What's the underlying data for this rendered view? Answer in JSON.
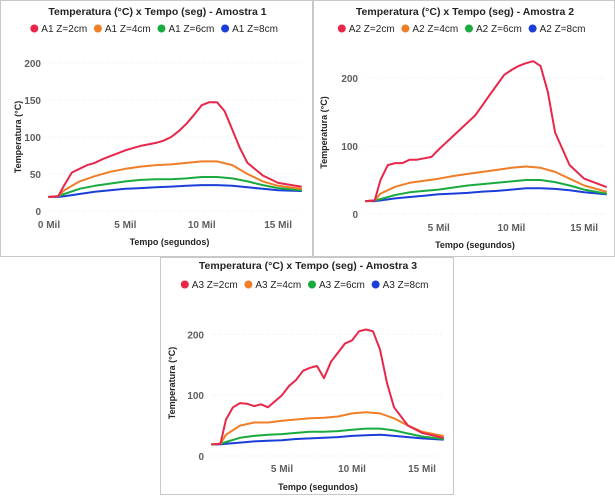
{
  "chart_data": [
    {
      "type": "line",
      "title": "Temperatura (°C) x Tempo (seg) - Amostra 1",
      "xlabel": "Tempo (segundos)",
      "ylabel": "Temperatura (°C)",
      "xlim": [
        0,
        16500
      ],
      "ylim": [
        0,
        200
      ],
      "x_ticks": [
        {
          "v": 0,
          "label": "0 Mil"
        },
        {
          "v": 5000,
          "label": "5 Mil"
        },
        {
          "v": 10000,
          "label": "10 Mil"
        },
        {
          "v": 15000,
          "label": "15 Mil"
        }
      ],
      "y_ticks": [
        {
          "v": 0,
          "label": "0"
        },
        {
          "v": 50,
          "label": "50"
        },
        {
          "v": 100,
          "label": "100"
        },
        {
          "v": 150,
          "label": "150"
        },
        {
          "v": 200,
          "label": "200"
        }
      ],
      "grid": true,
      "legend": "top",
      "series": [
        {
          "name": "A1 Z=2cm",
          "color": "#e8264a",
          "x": [
            0,
            600,
            1000,
            1500,
            2000,
            2500,
            3000,
            3500,
            4000,
            4500,
            5000,
            5500,
            6000,
            6500,
            7000,
            7500,
            8000,
            8500,
            9000,
            9500,
            10000,
            10500,
            11000,
            11500,
            12000,
            12500,
            13000,
            14000,
            15000,
            16500
          ],
          "y": [
            19,
            20,
            35,
            52,
            57,
            62,
            65,
            70,
            74,
            78,
            82,
            85,
            88,
            90,
            92,
            95,
            100,
            108,
            118,
            130,
            143,
            147,
            147,
            135,
            110,
            85,
            65,
            48,
            38,
            33
          ]
        },
        {
          "name": "A1 Z=4cm",
          "color": "#f07e28",
          "x": [
            0,
            600,
            1000,
            2000,
            3000,
            4000,
            5000,
            6000,
            7000,
            8000,
            9000,
            10000,
            11000,
            12000,
            13000,
            14000,
            15000,
            16500
          ],
          "y": [
            19,
            20,
            28,
            40,
            47,
            53,
            57,
            60,
            62,
            63,
            65,
            67,
            67,
            62,
            50,
            40,
            34,
            30
          ]
        },
        {
          "name": "A1 Z=6cm",
          "color": "#1aab40",
          "x": [
            0,
            600,
            1000,
            2000,
            3000,
            4000,
            5000,
            6000,
            7000,
            8000,
            9000,
            10000,
            11000,
            12000,
            13000,
            14000,
            15000,
            16500
          ],
          "y": [
            19,
            20,
            23,
            30,
            34,
            37,
            40,
            42,
            43,
            43,
            44,
            46,
            46,
            44,
            40,
            35,
            31,
            28
          ]
        },
        {
          "name": "A1 Z=8cm",
          "color": "#1b3ed8",
          "x": [
            0,
            600,
            1000,
            2000,
            3000,
            4000,
            5000,
            6000,
            7000,
            8000,
            9000,
            10000,
            11000,
            12000,
            13000,
            14000,
            15000,
            16500
          ],
          "y": [
            19,
            19,
            20,
            23,
            26,
            28,
            30,
            31,
            32,
            33,
            34,
            35,
            35,
            34,
            32,
            30,
            28,
            27
          ]
        }
      ]
    },
    {
      "type": "line",
      "title": "Temperatura (°C) x Tempo (seg) - Amostra 2",
      "xlabel": "Tempo (segundos)",
      "ylabel": "Temperatura (°C)",
      "xlim": [
        0,
        16500
      ],
      "ylim": [
        0,
        240
      ],
      "x_ticks": [
        {
          "v": 5000,
          "label": "5 Mil"
        },
        {
          "v": 10000,
          "label": "10 Mil"
        },
        {
          "v": 15000,
          "label": "15 Mil"
        }
      ],
      "y_ticks": [
        {
          "v": 0,
          "label": "0"
        },
        {
          "v": 100,
          "label": "100"
        },
        {
          "v": 200,
          "label": "200"
        }
      ],
      "grid": true,
      "legend": "top",
      "series": [
        {
          "name": "A2 Z=2cm",
          "color": "#e8264a",
          "x": [
            0,
            600,
            1000,
            1500,
            2000,
            2500,
            3000,
            3500,
            4000,
            4500,
            5000,
            5500,
            6000,
            6500,
            7000,
            7500,
            8000,
            8500,
            9000,
            9500,
            10000,
            10500,
            11000,
            11500,
            12000,
            12500,
            13000,
            14000,
            15000,
            16500
          ],
          "y": [
            19,
            20,
            50,
            72,
            75,
            75,
            80,
            80,
            82,
            84,
            95,
            105,
            115,
            125,
            135,
            145,
            160,
            175,
            190,
            205,
            212,
            218,
            222,
            225,
            218,
            180,
            120,
            72,
            52,
            40
          ]
        },
        {
          "name": "A2 Z=4cm",
          "color": "#f07e28",
          "x": [
            0,
            600,
            1000,
            2000,
            3000,
            4000,
            5000,
            6000,
            7000,
            8000,
            9000,
            10000,
            11000,
            12000,
            13000,
            14000,
            15000,
            16500
          ],
          "y": [
            19,
            20,
            30,
            40,
            46,
            49,
            52,
            56,
            59,
            62,
            65,
            68,
            70,
            68,
            62,
            52,
            42,
            33
          ]
        },
        {
          "name": "A2 Z=6cm",
          "color": "#1aab40",
          "x": [
            0,
            600,
            1000,
            2000,
            3000,
            4000,
            5000,
            6000,
            7000,
            8000,
            9000,
            10000,
            11000,
            12000,
            13000,
            14000,
            15000,
            16500
          ],
          "y": [
            19,
            20,
            22,
            28,
            32,
            34,
            36,
            39,
            42,
            44,
            46,
            48,
            50,
            50,
            47,
            42,
            36,
            30
          ]
        },
        {
          "name": "A2 Z=8cm",
          "color": "#1b3ed8",
          "x": [
            0,
            600,
            1000,
            2000,
            3000,
            4000,
            5000,
            6000,
            7000,
            8000,
            9000,
            10000,
            11000,
            12000,
            13000,
            14000,
            15000,
            16500
          ],
          "y": [
            19,
            19,
            20,
            23,
            25,
            27,
            29,
            30,
            31,
            33,
            34,
            36,
            38,
            38,
            37,
            35,
            32,
            29
          ]
        }
      ]
    },
    {
      "type": "line",
      "title": "Temperatura (°C) x Tempo (seg) - Amostra 3",
      "xlabel": "Tempo (segundos)",
      "ylabel": "Temperatura (°C)",
      "xlim": [
        0,
        16500
      ],
      "ylim": [
        0,
        240
      ],
      "x_ticks": [
        {
          "v": 5000,
          "label": "5 Mil"
        },
        {
          "v": 10000,
          "label": "10 Mil"
        },
        {
          "v": 15000,
          "label": "15 Mil"
        }
      ],
      "y_ticks": [
        {
          "v": 0,
          "label": "0"
        },
        {
          "v": 100,
          "label": "100"
        },
        {
          "v": 200,
          "label": "200"
        }
      ],
      "grid": true,
      "legend": "top",
      "series": [
        {
          "name": "A3 Z=2cm",
          "color": "#e8264a",
          "x": [
            0,
            600,
            1000,
            1500,
            2000,
            2500,
            3000,
            3500,
            4000,
            4500,
            5000,
            5500,
            6000,
            6500,
            7000,
            7500,
            8000,
            8500,
            9000,
            9500,
            10000,
            10500,
            11000,
            11500,
            12000,
            12500,
            13000,
            14000,
            15000,
            16500
          ],
          "y": [
            19,
            20,
            60,
            80,
            87,
            86,
            82,
            85,
            80,
            90,
            100,
            115,
            125,
            140,
            145,
            148,
            128,
            155,
            170,
            185,
            190,
            205,
            208,
            205,
            175,
            120,
            80,
            50,
            38,
            30
          ]
        },
        {
          "name": "A3 Z=4cm",
          "color": "#f07e28",
          "x": [
            0,
            600,
            1000,
            2000,
            3000,
            4000,
            5000,
            6000,
            7000,
            8000,
            9000,
            10000,
            11000,
            12000,
            13000,
            14000,
            15000,
            16500
          ],
          "y": [
            19,
            20,
            35,
            50,
            55,
            55,
            58,
            60,
            62,
            63,
            65,
            70,
            72,
            70,
            62,
            50,
            40,
            33
          ]
        },
        {
          "name": "A3 Z=6cm",
          "color": "#1aab40",
          "x": [
            0,
            600,
            1000,
            2000,
            3000,
            4000,
            5000,
            6000,
            7000,
            8000,
            9000,
            10000,
            11000,
            12000,
            13000,
            14000,
            15000,
            16500
          ],
          "y": [
            19,
            20,
            23,
            30,
            33,
            35,
            36,
            38,
            40,
            40,
            41,
            43,
            45,
            45,
            42,
            37,
            32,
            28
          ]
        },
        {
          "name": "A3 Z=8cm",
          "color": "#1b3ed8",
          "x": [
            0,
            600,
            1000,
            2000,
            3000,
            4000,
            5000,
            6000,
            7000,
            8000,
            9000,
            10000,
            11000,
            12000,
            13000,
            14000,
            15000,
            16500
          ],
          "y": [
            19,
            19,
            20,
            22,
            24,
            25,
            26,
            28,
            29,
            30,
            31,
            33,
            34,
            35,
            33,
            31,
            29,
            27
          ]
        }
      ]
    }
  ]
}
